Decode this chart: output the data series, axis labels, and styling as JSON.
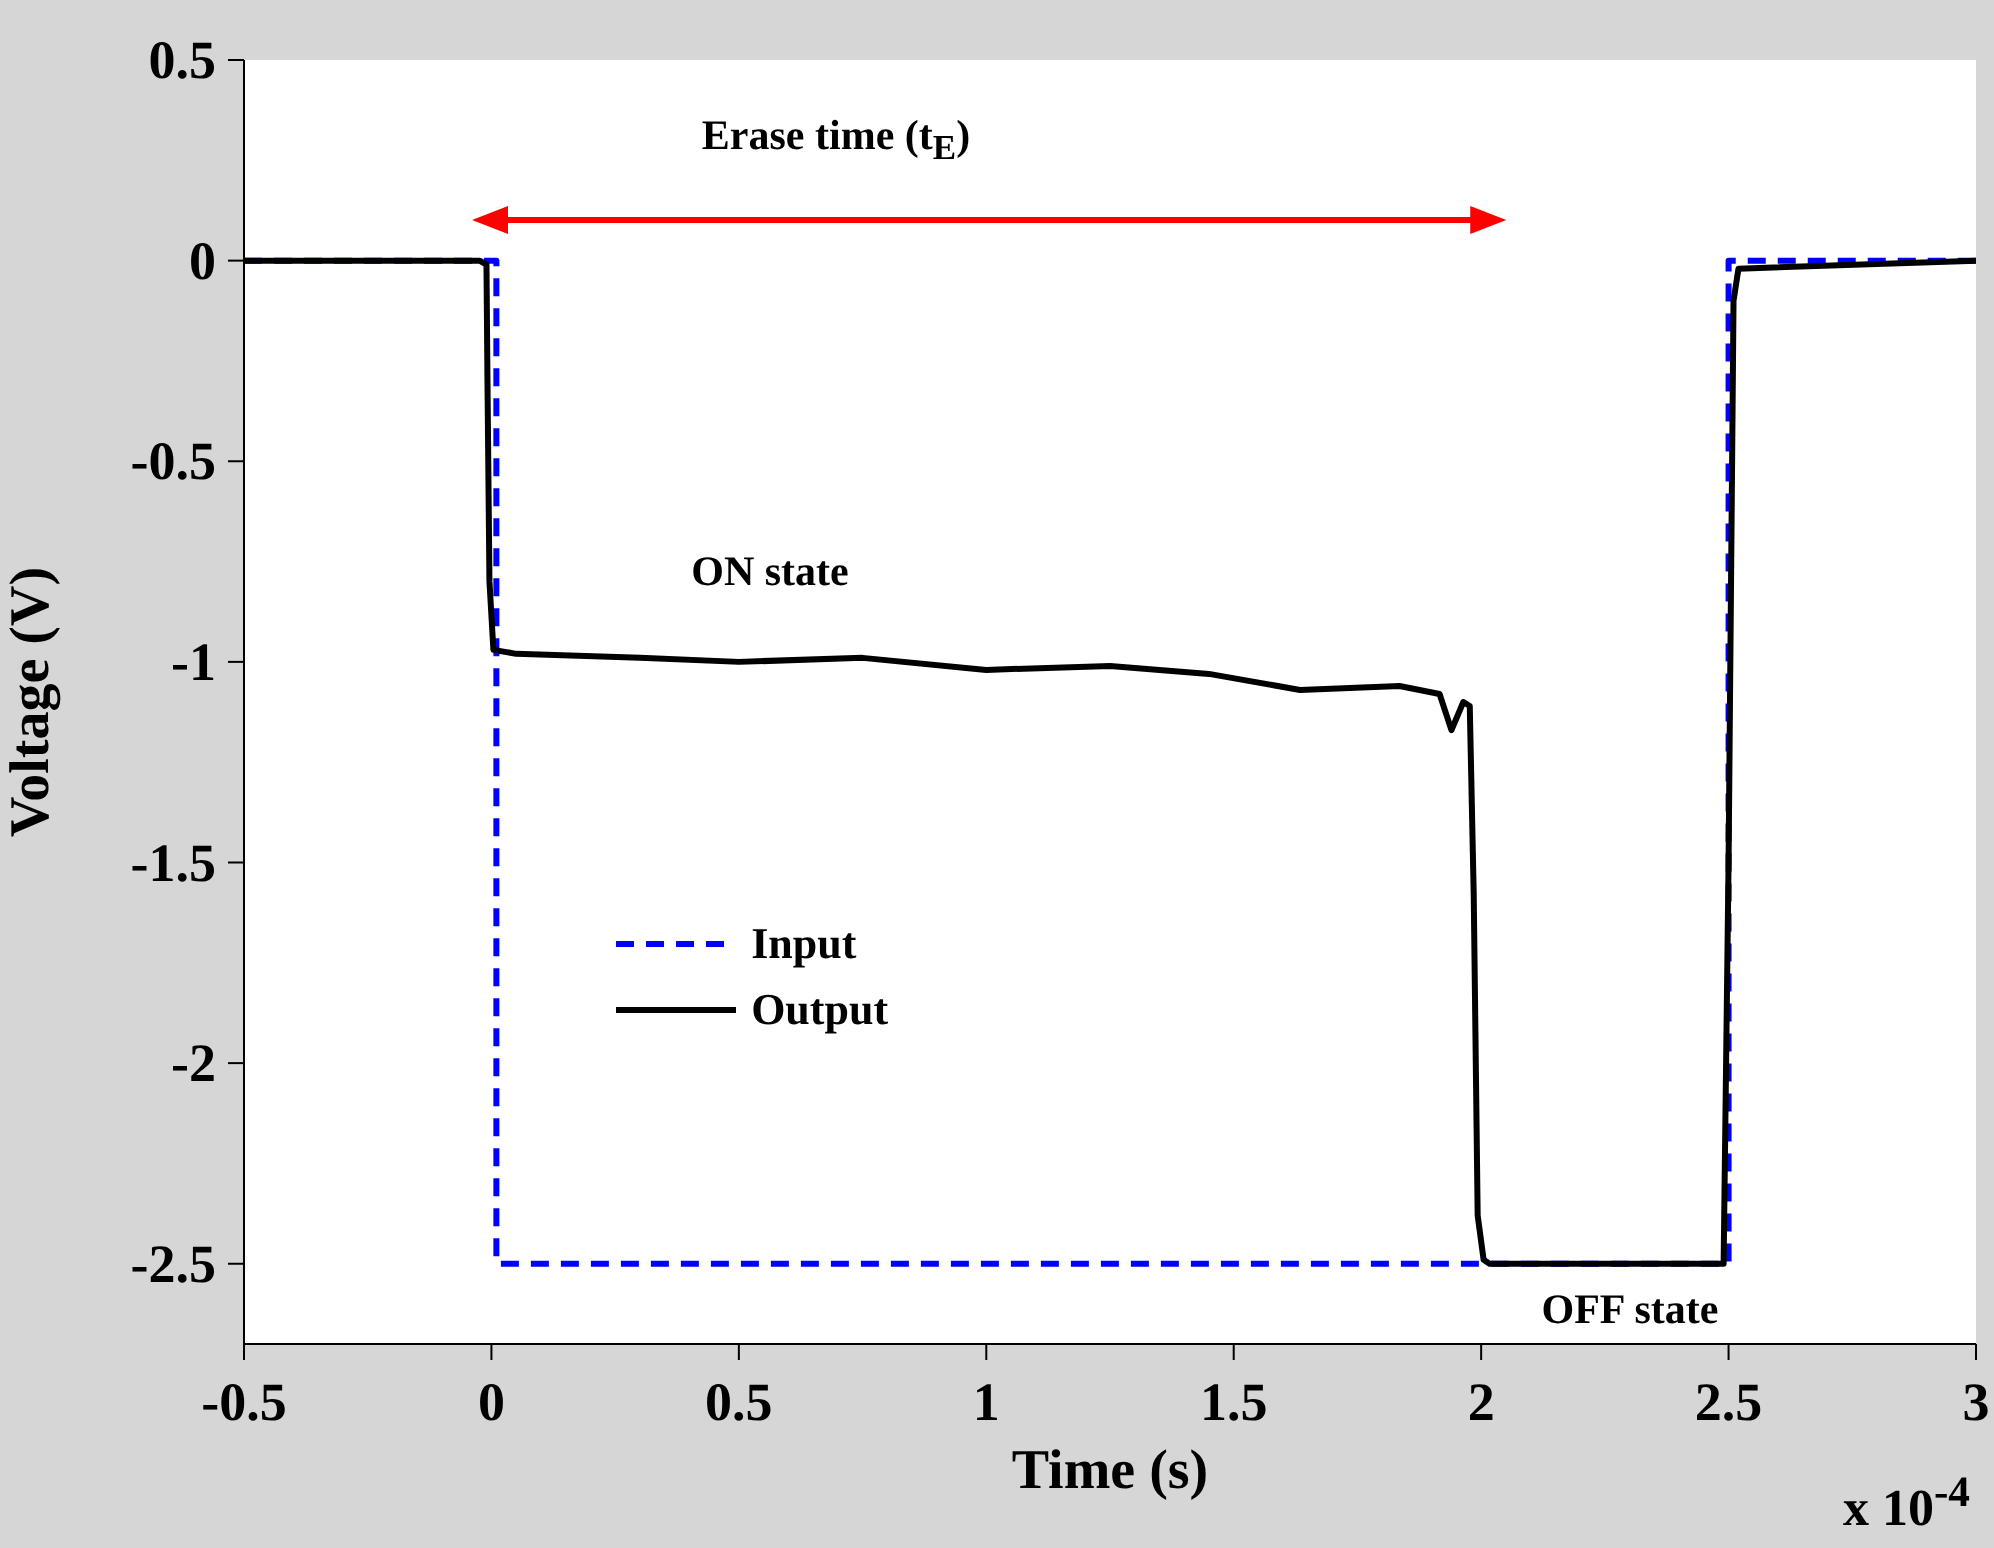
{
  "chart_data": {
    "type": "line",
    "xlabel": "Time (s)",
    "ylabel": "Voltage (V)",
    "xlim": [
      -0.5,
      3
    ],
    "xticks": [
      -0.5,
      0,
      0.5,
      1,
      1.5,
      2,
      2.5,
      3
    ],
    "ylim": [
      -2.7,
      0.5
    ],
    "yticks": [
      -2.5,
      -2,
      -1.5,
      -1,
      -0.5,
      0,
      0.5
    ],
    "grid": false,
    "legend": "left",
    "annotations": [
      "Erase time (t$_{E}$)",
      "ON state",
      "OFF state",
      "x 10$^{-4}$"
    ],
    "series": [
      {
        "name": "Input",
        "color": "#0000ff",
        "line_style": "dashed",
        "x": [
          -0.5,
          0.01,
          0.01,
          2.5,
          2.5,
          3
        ],
        "values": [
          0,
          0,
          -2.5,
          -2.5,
          0,
          0
        ]
      },
      {
        "name": "Output",
        "color": "#000000",
        "line_style": "solid",
        "x": [
          -0.5,
          -0.024,
          -0.01,
          -0.008,
          -0.004,
          0.004,
          0.05,
          0.3,
          0.5,
          0.75,
          1.0,
          1.25,
          1.45,
          1.634,
          1.835,
          1.916,
          1.94,
          1.964,
          1.977,
          1.985,
          1.993,
          2.005,
          2.017,
          2.49,
          2.5,
          2.51,
          2.52,
          3
        ],
        "values": [
          0,
          0,
          -0.01,
          -0.3,
          -0.8,
          -0.97,
          -0.98,
          -0.99,
          -1.0,
          -0.99,
          -1.02,
          -1.01,
          -1.03,
          -1.07,
          -1.06,
          -1.08,
          -1.17,
          -1.1,
          -1.11,
          -1.58,
          -2.38,
          -2.49,
          -2.5,
          -2.5,
          -1.5,
          -0.1,
          -0.02,
          0
        ]
      }
    ]
  }
}
